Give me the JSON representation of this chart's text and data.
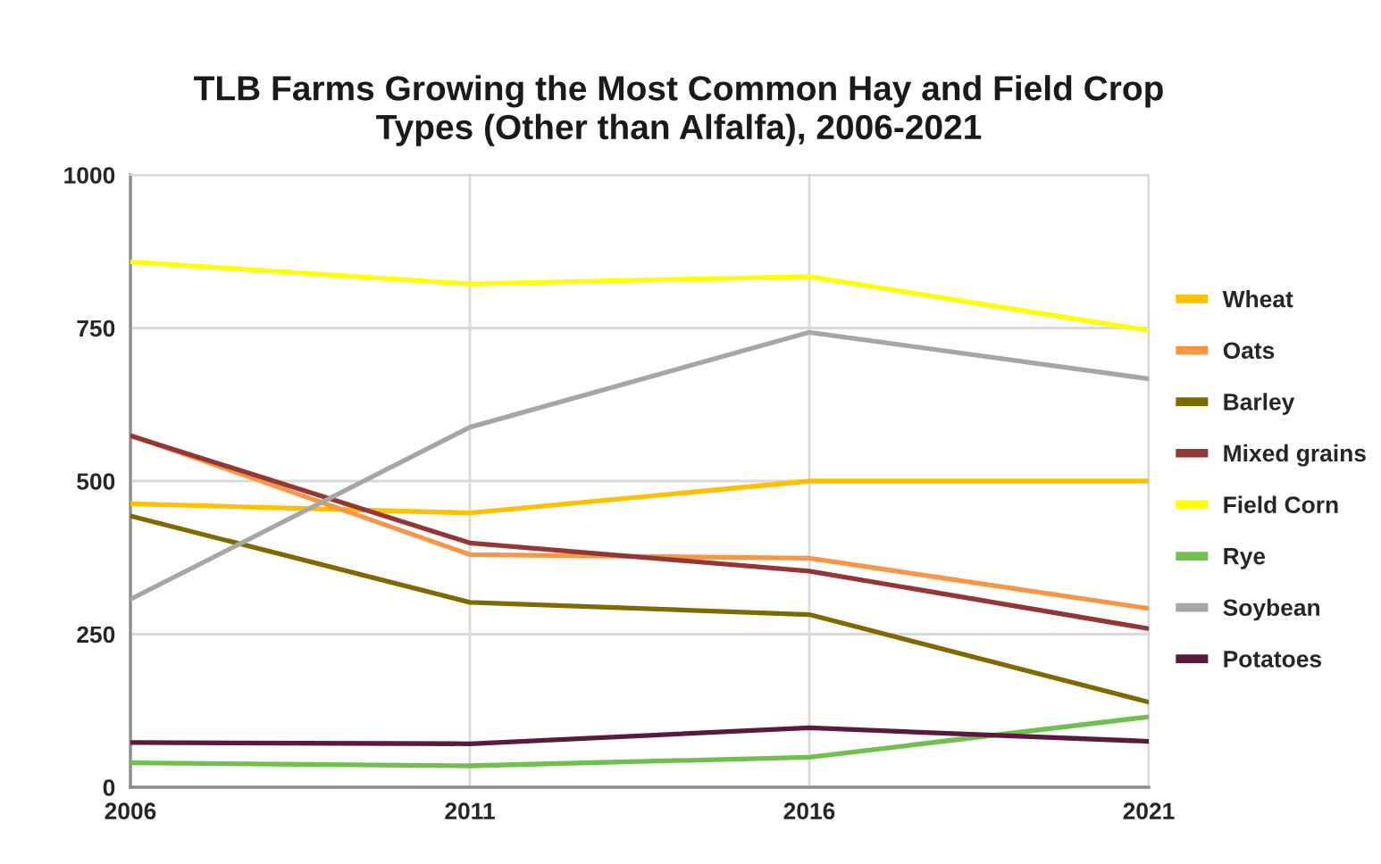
{
  "chart_data": {
    "type": "line",
    "title": "TLB Farms Growing the Most Common Hay and Field Crop Types (Other than Alfalfa), 2006-2021",
    "x": [
      2006,
      2011,
      2016,
      2021
    ],
    "xlim": [
      2006,
      2021
    ],
    "xticks": [
      2006,
      2011,
      2016,
      2021
    ],
    "ylim": [
      0,
      1000
    ],
    "yticks": [
      0,
      250,
      500,
      750,
      1000
    ],
    "grid": true,
    "legend": "right",
    "series": [
      {
        "name": "Wheat",
        "color": "#ffc000",
        "values": [
          463,
          448,
          500,
          500
        ]
      },
      {
        "name": "Oats",
        "color": "#f79646",
        "values": [
          575,
          380,
          374,
          292
        ]
      },
      {
        "name": "Barley",
        "color": "#7f6a00",
        "values": [
          443,
          302,
          282,
          139
        ]
      },
      {
        "name": "Mixed grains",
        "color": "#963634",
        "values": [
          574,
          399,
          353,
          259
        ]
      },
      {
        "name": "Field Corn",
        "color": "#ffff00",
        "values": [
          858,
          822,
          834,
          746
        ]
      },
      {
        "name": "Rye",
        "color": "#70c050",
        "values": [
          40,
          35,
          49,
          115
        ]
      },
      {
        "name": "Soybean",
        "color": "#a6a6a6",
        "values": [
          307,
          588,
          743,
          667
        ]
      },
      {
        "name": "Potatoes",
        "color": "#5a1a40",
        "values": [
          73,
          71,
          97,
          75
        ]
      }
    ]
  }
}
